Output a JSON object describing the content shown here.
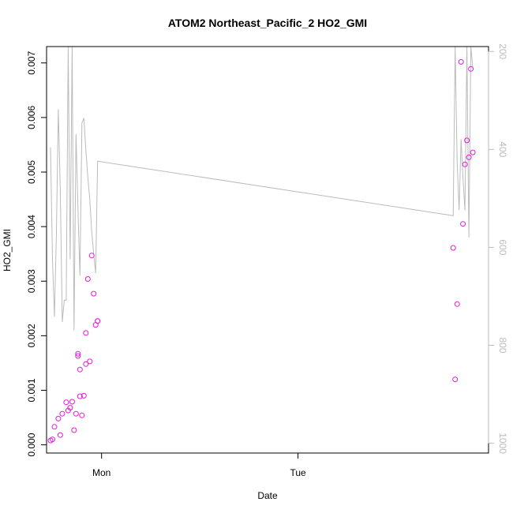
{
  "chart_data": {
    "type": "scatter",
    "title": "ATOM2 Northeast_Pacific_2 HO2_GMI",
    "xlabel": "Date",
    "ylabel": "HO2_GMI",
    "x_ticks": [
      "Mon",
      "Tue"
    ],
    "y_ticks": [
      "0.000",
      "0.001",
      "0.002",
      "0.003",
      "0.004",
      "0.005",
      "0.006",
      "0.007"
    ],
    "y_right_ticks": [
      "200",
      "400",
      "600",
      "800",
      "1000"
    ],
    "xlim_days": [
      -0.28,
      1.97
    ],
    "ylim": [
      -0.00015,
      0.0073
    ],
    "y_right_lim": [
      1020,
      190
    ],
    "point_color": "#e619d9",
    "line_color": "#bbbbbb",
    "series": [
      {
        "type": "points",
        "x_days": [
          -0.26,
          -0.25,
          -0.24,
          -0.22,
          -0.21,
          -0.2,
          -0.18,
          -0.17,
          -0.16,
          -0.15,
          -0.14,
          -0.13,
          -0.12,
          -0.12,
          -0.11,
          -0.11,
          -0.1,
          -0.09,
          -0.08,
          -0.08,
          -0.07,
          -0.06,
          -0.05,
          -0.04,
          -0.03,
          -0.02,
          -0.02,
          1.79,
          1.8,
          1.81,
          1.83,
          1.84,
          1.85,
          1.86,
          1.87,
          1.88,
          1.89
        ],
        "y": [
          8e-05,
          0.0001,
          0.00033,
          0.00048,
          0.00018,
          0.00057,
          0.00078,
          0.00063,
          0.00068,
          0.00079,
          0.00027,
          0.00057,
          0.00163,
          0.00167,
          0.00138,
          0.00089,
          0.00054,
          0.0009,
          0.00205,
          0.00148,
          0.00304,
          0.00153,
          0.00347,
          0.00277,
          0.0022,
          0.00227,
          0.00227,
          0.00361,
          0.0012,
          0.00258,
          0.00702,
          0.00405,
          0.00514,
          0.00558,
          0.00527,
          0.00689,
          0.00536
        ]
      },
      {
        "type": "line",
        "x_days": [
          -0.26,
          -0.25,
          -0.24,
          -0.23,
          -0.22,
          -0.21,
          -0.2,
          -0.19,
          -0.18,
          -0.17,
          -0.16,
          -0.15,
          -0.14,
          -0.13,
          -0.12,
          -0.11,
          -0.1,
          -0.09,
          -0.08,
          -0.07,
          -0.06,
          -0.05,
          -0.04,
          -0.03,
          -0.02,
          1.79,
          1.8,
          1.81,
          1.82,
          1.83,
          1.84,
          1.85,
          1.86,
          1.87,
          1.88,
          1.89
        ],
        "y": [
          0.00545,
          0.0034,
          0.00235,
          0.00383,
          0.00615,
          0.00466,
          0.00225,
          0.00265,
          0.00265,
          0.0074,
          0.0034,
          0.0074,
          0.0021,
          0.0057,
          0.0043,
          0.0031,
          0.0059,
          0.00599,
          0.0054,
          0.0049,
          0.0045,
          0.0039,
          0.0035,
          0.00315,
          0.0052,
          0.0042,
          0.0074,
          0.0052,
          0.0043,
          0.0056,
          0.0049,
          0.0043,
          0.0074,
          0.0038,
          0.0074,
          0.0069
        ]
      }
    ]
  }
}
